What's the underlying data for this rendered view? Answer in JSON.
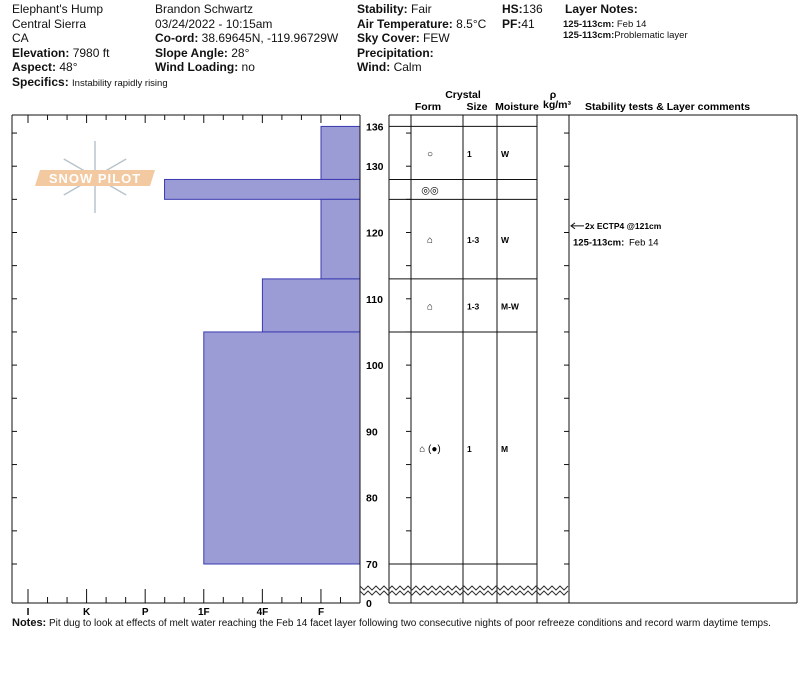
{
  "header": {
    "location": "Elephant's Hump",
    "region": "Central Sierra",
    "state": "CA",
    "elevation_label": "Elevation:",
    "elevation": "7980 ft",
    "aspect_label": "Aspect:",
    "aspect": "48°",
    "specifics_label": "Specifics:",
    "specifics": "Instability rapidly rising",
    "observer": "Brandon Schwartz",
    "datetime": "03/24/2022 - 10:15am",
    "coord_label": "Co-ord:",
    "coord": "38.69645N, -119.96729W",
    "slope_label": "Slope Angle:",
    "slope": "28°",
    "wind_loading_label": "Wind Loading:",
    "wind_loading": "no",
    "stability_label": "Stability:",
    "stability": "Fair",
    "air_temp_label": "Air Temperature:",
    "air_temp": "8.5°C",
    "sky_label": "Sky Cover:",
    "sky": "FEW",
    "precip_label": "Precipitation:",
    "precip": "",
    "wind_label": "Wind:",
    "wind": "Calm",
    "hs_label": "HS:",
    "hs": "136",
    "pf_label": "PF:",
    "pf": "41",
    "layer_notes_label": "Layer Notes:",
    "layer_notes": [
      {
        "range": "125-113cm:",
        "text": "Feb 14"
      },
      {
        "range": "125-113cm:",
        "text": "Problematic layer"
      }
    ]
  },
  "columns": {
    "crystal": "Crystal",
    "form": "Form",
    "size": "Size",
    "moisture": "Moisture",
    "rho": "ρ",
    "density_unit": "kg/m³",
    "comments": "Stability tests & Layer comments"
  },
  "logo_text": "SNOW PILOT",
  "chart_data": {
    "type": "snow-profile",
    "hardness_scale": [
      "I",
      "K",
      "P",
      "1F",
      "4F",
      "F"
    ],
    "depth_ticks": [
      "136",
      "130",
      "120",
      "110",
      "100",
      "90",
      "80",
      "70",
      "0"
    ],
    "depth_range_cm": [
      70,
      136
    ],
    "layers": [
      {
        "top": 136,
        "bottom": 128,
        "hardness": "F",
        "hardness_index": 5,
        "form": "○",
        "size": "1",
        "moisture": "W"
      },
      {
        "top": 128,
        "bottom": 125,
        "hardness": "P+",
        "hardness_index": 2.33,
        "form": "◎◎",
        "size": "",
        "moisture": ""
      },
      {
        "top": 125,
        "bottom": 113,
        "hardness": "F",
        "hardness_index": 5,
        "form": "⌂",
        "size": "1-3",
        "moisture": "W"
      },
      {
        "top": 113,
        "bottom": 105,
        "hardness": "4F",
        "hardness_index": 4,
        "form": "⌂",
        "size": "1-3",
        "moisture": "M-W"
      },
      {
        "top": 105,
        "bottom": 70,
        "hardness": "1F",
        "hardness_index": 3,
        "form": "⌂ (●)",
        "size": "1",
        "moisture": "M"
      }
    ],
    "tests": [
      {
        "depth": 121,
        "text": "2x ECTP4 @121cm"
      }
    ],
    "layer_comments": [
      {
        "depth": 118.5,
        "range": "125-113cm:",
        "text": "Feb 14"
      }
    ]
  },
  "notes_label": "Notes:",
  "notes": "Pit dug to look at effects of melt water reaching the Feb 14 facet layer following two consecutive nights of poor refreeze conditions and record warm daytime temps.",
  "colors": {
    "bar_fill": "#9b9bd6",
    "bar_stroke": "#3a3ab0",
    "logo": "#f2c9a0",
    "flake": "#b8c4cc"
  }
}
